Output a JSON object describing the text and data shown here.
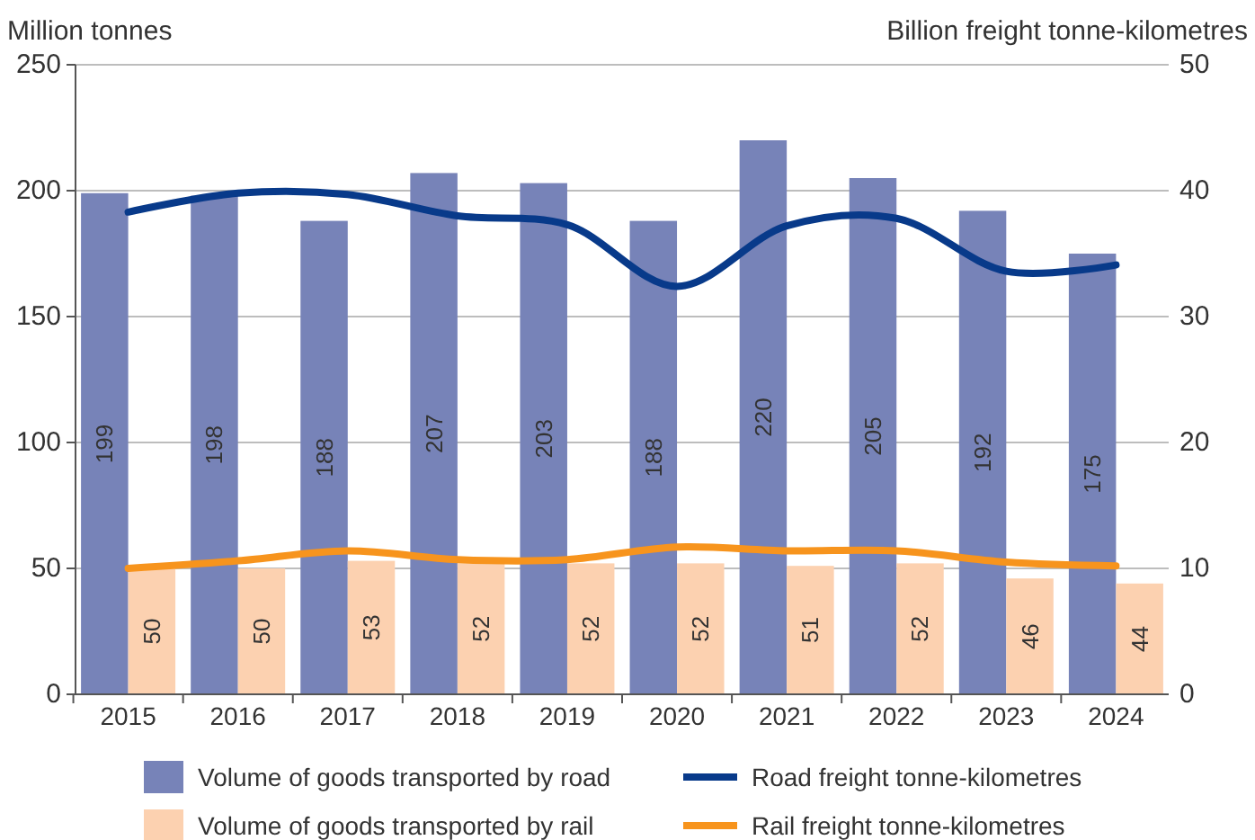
{
  "chart_data": {
    "type": "bar",
    "ylabel": "Million tonnes",
    "y2label": "Billion freight tonne-kilometres",
    "categories": [
      "2015",
      "2016",
      "2017",
      "2018",
      "2019",
      "2020",
      "2021",
      "2022",
      "2023",
      "2024"
    ],
    "series": [
      {
        "name": "Volume of goods transported by road",
        "color": "#7783b8",
        "values": [
          199,
          198,
          188,
          207,
          203,
          188,
          220,
          205,
          192,
          175
        ],
        "value_labels": [
          "199",
          "198",
          "188",
          "207",
          "203",
          "188",
          "220",
          "205",
          "192",
          "175"
        ]
      },
      {
        "name": "Volume of goods transported by rail",
        "color": "#fcd1b0",
        "values": [
          50,
          50,
          53,
          52,
          52,
          52,
          51,
          52,
          46,
          44
        ],
        "value_labels": [
          "50",
          "50",
          "53",
          "52",
          "52",
          "52",
          "51",
          "52",
          "46",
          "44"
        ]
      },
      {
        "name": "Road freight tonne-kilometres",
        "type": "line",
        "axis": "y2",
        "color": "#083a8a",
        "values": [
          38.3,
          39.8,
          39.7,
          38.0,
          37.3,
          32.4,
          37.2,
          37.8,
          33.6,
          34.1
        ]
      },
      {
        "name": "Rail freight tonne-kilometres",
        "type": "line",
        "axis": "y2",
        "color": "#f7941d",
        "values": [
          10.0,
          10.6,
          11.4,
          10.7,
          10.7,
          11.7,
          11.4,
          11.4,
          10.5,
          10.2
        ]
      }
    ],
    "ylim": [
      0,
      250
    ],
    "yticks": [
      0,
      50,
      100,
      150,
      200,
      250
    ],
    "y2lim": [
      0,
      50
    ],
    "y2ticks": [
      0,
      10,
      20,
      30,
      40,
      50
    ],
    "grid": "y",
    "legend": "bottom"
  }
}
